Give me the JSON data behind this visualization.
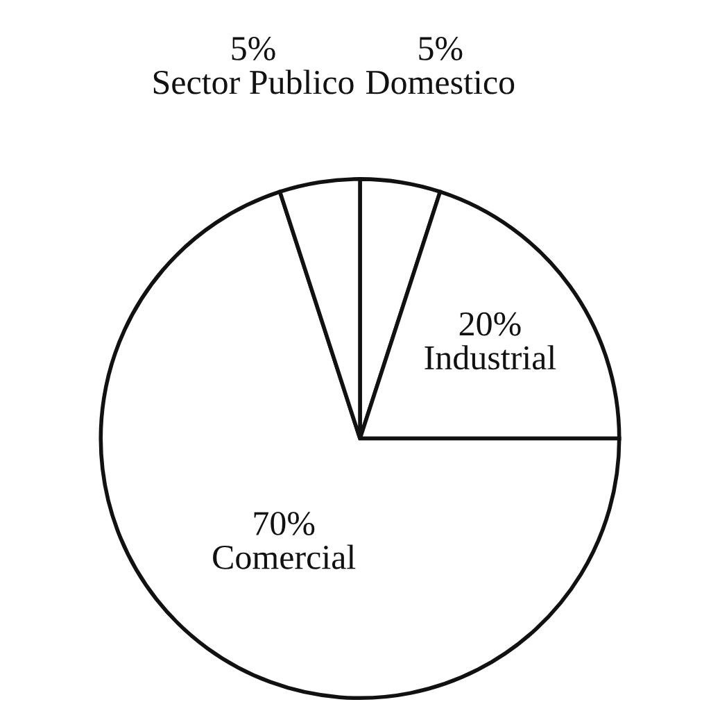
{
  "chart_data": {
    "type": "pie",
    "categories": [
      "Domestico",
      "Industrial",
      "Comercial",
      "Sector Publico"
    ],
    "values": [
      5,
      20,
      70,
      5
    ],
    "colors": [
      "#ffffff",
      "#ffffff",
      "#ffffff",
      "#ffffff"
    ],
    "value_labels": [
      "5%",
      "20%",
      "70%",
      "5%"
    ]
  }
}
